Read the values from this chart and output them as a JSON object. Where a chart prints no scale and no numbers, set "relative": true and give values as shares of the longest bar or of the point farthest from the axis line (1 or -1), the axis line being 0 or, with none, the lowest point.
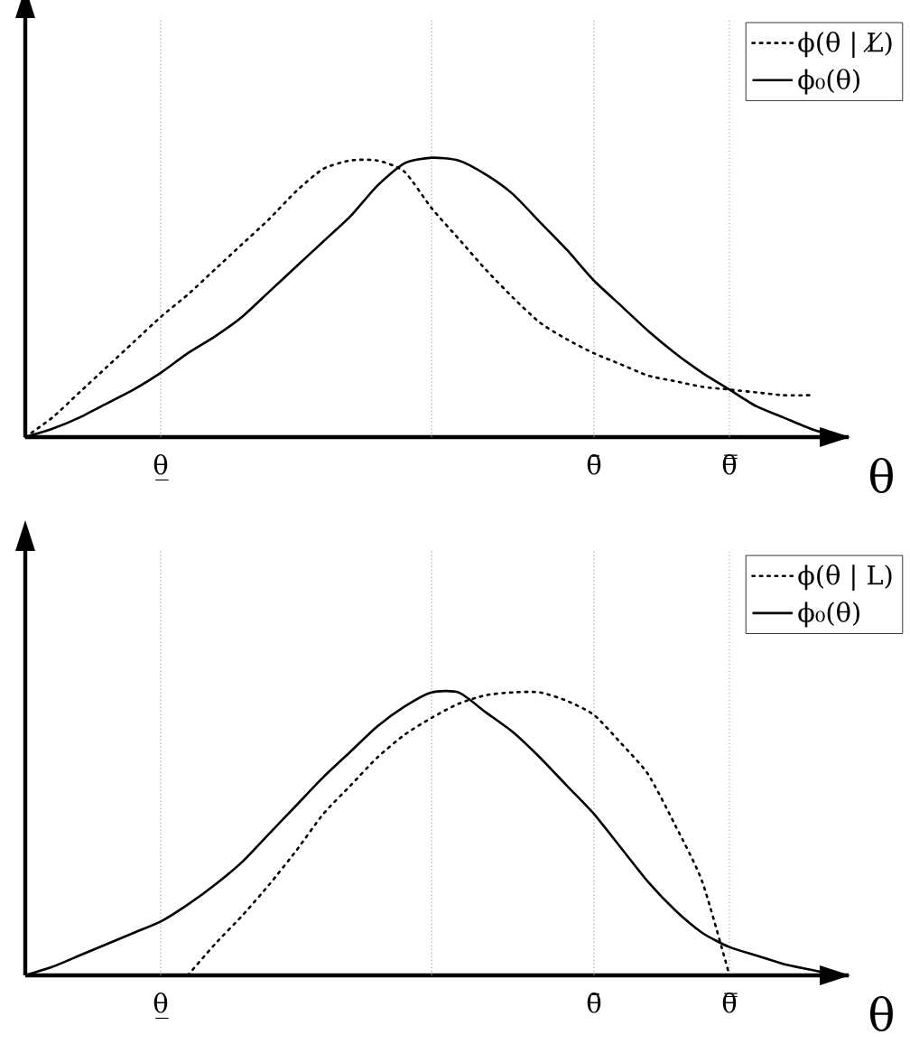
{
  "chart_data": [
    {
      "type": "line",
      "relative": true,
      "xlabel": "θ",
      "categories": [
        null,
        null,
        null,
        null,
        null,
        "θ̲",
        null,
        null,
        null,
        null,
        null,
        null,
        null,
        null,
        null,
        null,
        null,
        null,
        null,
        null,
        null,
        "θ̄",
        null,
        null,
        null,
        null,
        "θ̿",
        null,
        null,
        null,
        null
      ],
      "grid": "x",
      "legend": "top right",
      "series": [
        {
          "name": "ϕ(θ | L̸)",
          "color": "#000000",
          "line_style": "dotted",
          "values": [
            0,
            0.07,
            0.16,
            0.25,
            0.34,
            0.43,
            0.51,
            0.6,
            0.69,
            0.78,
            0.88,
            0.96,
            0.99,
            0.99,
            0.95,
            0.82,
            0.71,
            0.6,
            0.5,
            0.41,
            0.35,
            0.3,
            0.26,
            0.22,
            0.2,
            0.18,
            0.17,
            0.16,
            0.15,
            0.15,
            null
          ]
        },
        {
          "name": "ϕ₀(θ)",
          "color": "#000000",
          "line_style": "solid",
          "values": [
            0,
            0.03,
            0.07,
            0.12,
            0.17,
            0.23,
            0.3,
            0.36,
            0.43,
            0.52,
            0.61,
            0.7,
            0.79,
            0.9,
            0.98,
            1.0,
            0.99,
            0.94,
            0.87,
            0.77,
            0.67,
            0.56,
            0.47,
            0.38,
            0.3,
            0.23,
            0.17,
            0.11,
            0.07,
            0.03,
            0
          ]
        }
      ]
    },
    {
      "type": "line",
      "relative": true,
      "xlabel": "θ",
      "categories": [
        null,
        null,
        null,
        null,
        null,
        "θ̲",
        null,
        null,
        null,
        null,
        null,
        null,
        null,
        null,
        null,
        null,
        null,
        null,
        null,
        null,
        null,
        "θ̄",
        null,
        null,
        null,
        null,
        "θ̿",
        null,
        null,
        null,
        null
      ],
      "grid": "x",
      "legend": "top right",
      "series": [
        {
          "name": "ϕ(θ | L)",
          "color": "#000000",
          "line_style": "dotted",
          "values": [
            null,
            null,
            null,
            null,
            null,
            null,
            0,
            0.11,
            0.21,
            0.32,
            0.44,
            0.57,
            0.67,
            0.77,
            0.85,
            0.91,
            0.96,
            0.99,
            1.0,
            1.0,
            0.97,
            0.92,
            0.82,
            0.71,
            0.53,
            0.33,
            0,
            null,
            null,
            null,
            null
          ]
        },
        {
          "name": "ϕ₀(θ)",
          "color": "#000000",
          "line_style": "solid",
          "values": [
            0,
            0.03,
            0.07,
            0.11,
            0.15,
            0.19,
            0.25,
            0.32,
            0.4,
            0.5,
            0.6,
            0.7,
            0.79,
            0.88,
            0.95,
            1.0,
            1.0,
            0.93,
            0.86,
            0.77,
            0.67,
            0.57,
            0.45,
            0.33,
            0.23,
            0.15,
            0.1,
            0.07,
            0.04,
            0.02,
            0
          ]
        }
      ]
    }
  ]
}
